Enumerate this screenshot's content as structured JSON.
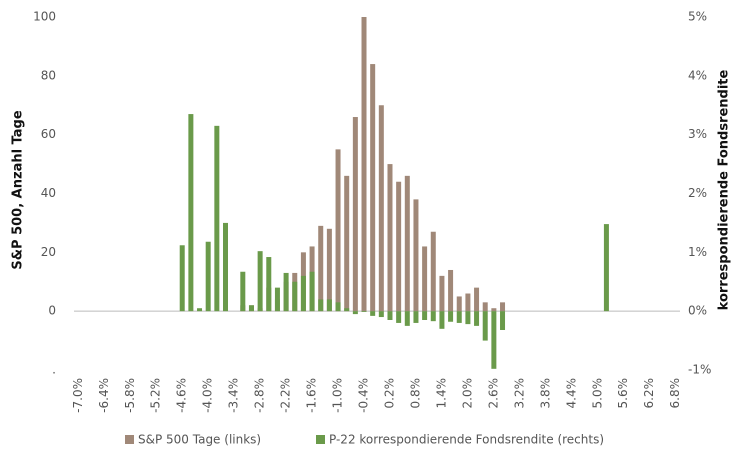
{
  "chart_data": {
    "type": "bar",
    "categories": [
      "-7.0%",
      null,
      null,
      "-6.4%",
      null,
      null,
      "-5.8%",
      null,
      null,
      "-5.2%",
      null,
      null,
      "-4.6%",
      null,
      null,
      "-4.0%",
      null,
      null,
      "-3.4%",
      null,
      null,
      "-2.8%",
      null,
      null,
      "-2.2%",
      null,
      null,
      "-1.6%",
      null,
      null,
      "-1.0%",
      null,
      null,
      "-0.4%",
      null,
      null,
      "0.2%",
      null,
      null,
      "0.8%",
      null,
      null,
      "1.4%",
      null,
      null,
      "2.0%",
      null,
      null,
      "2.6%",
      null,
      null,
      "3.2%",
      null,
      null,
      "3.8%",
      null,
      null,
      "4.4%",
      null,
      null,
      "5.0%",
      null,
      null,
      "5.6%",
      null,
      null,
      "6.2%",
      null,
      null,
      "6.8%"
    ],
    "series": [
      {
        "name": "S&P 500 Tage (links)",
        "color": "#a08878",
        "axis": "y",
        "values": [
          null,
          null,
          null,
          null,
          null,
          null,
          null,
          null,
          null,
          null,
          null,
          null,
          null,
          null,
          null,
          null,
          null,
          null,
          null,
          2,
          2,
          1,
          8,
          4,
          10,
          13,
          20,
          22,
          29,
          28,
          55,
          46,
          66,
          100,
          84,
          70,
          50,
          44,
          46,
          38,
          22,
          27,
          12,
          14,
          5,
          6,
          8,
          3,
          1,
          3,
          null,
          null,
          null,
          null,
          null,
          null,
          null,
          null,
          null,
          null,
          null,
          null,
          null,
          null,
          null,
          null,
          null,
          null,
          null,
          null
        ]
      },
      {
        "name": "P-22 korrespondierende Fondsrendite (rechts)",
        "color": "#6a9a4a",
        "axis": "y2",
        "values": [
          null,
          null,
          null,
          null,
          null,
          null,
          null,
          null,
          null,
          null,
          null,
          null,
          1.12,
          3.35,
          0.05,
          1.18,
          3.15,
          1.5,
          null,
          0.67,
          0.1,
          1.02,
          0.92,
          0.4,
          0.65,
          0.5,
          0.6,
          0.67,
          0.2,
          0.2,
          0.15,
          0.05,
          -0.05,
          0,
          -0.08,
          -0.1,
          -0.15,
          -0.2,
          -0.25,
          -0.2,
          -0.15,
          -0.17,
          -0.3,
          -0.18,
          -0.2,
          -0.22,
          -0.25,
          -0.5,
          -0.98,
          -0.32,
          null,
          null,
          null,
          null,
          null,
          null,
          null,
          null,
          null,
          null,
          null,
          1.48,
          null,
          null,
          null,
          null,
          null,
          null,
          null,
          null
        ]
      }
    ],
    "y_label": "S&P 500, Anzahl Tage",
    "y2_label": "korrespondierende Fondsrendite",
    "ylim": [
      -20,
      100
    ],
    "yticks": [
      {
        "value": -20,
        "label": "."
      },
      0,
      20,
      40,
      60,
      80,
      100
    ],
    "y2lim": [
      -1,
      5
    ],
    "y2ticks": [
      {
        "value": -1,
        "label": "-1%"
      },
      {
        "value": 0,
        "label": "0%"
      },
      {
        "value": 1,
        "label": "1%"
      },
      {
        "value": 2,
        "label": "2%"
      },
      {
        "value": 3,
        "label": "3%"
      },
      {
        "value": 4,
        "label": "4%"
      },
      {
        "value": 5,
        "label": "5%"
      }
    ],
    "legend": "bottom"
  }
}
